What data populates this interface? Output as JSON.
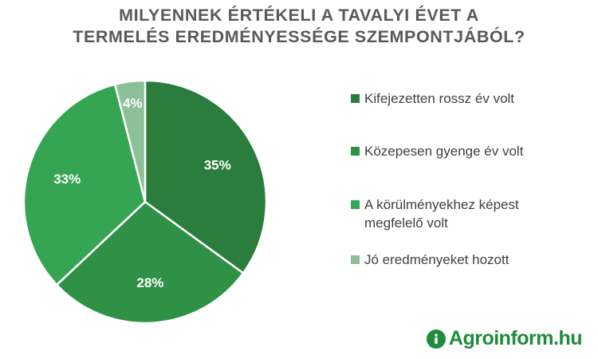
{
  "title_lines": [
    "MILYENNEK ÉRTÉKELI A TAVALYI ÉVET A",
    "TERMELÉS EREDMÉNYESSÉGE SZEMPONTJÁBÓL?"
  ],
  "chart_data": {
    "type": "pie",
    "title": "MILYENNEK ÉRTÉKELI A TAVALYI ÉVET A TERMELÉS EREDMÉNYESSÉGE SZEMPONTJÁBÓL?",
    "unit": "%",
    "slices": [
      {
        "label": "Kifejezetten rossz év volt",
        "value": 35,
        "display": "35%",
        "color": "#2a7d3c"
      },
      {
        "label": "Közepesen gyenge év volt",
        "value": 28,
        "display": "28%",
        "color": "#2e9146"
      },
      {
        "label": "A körülményekhez képest megfelelő volt",
        "value": 33,
        "display": "33%",
        "color": "#35a553"
      },
      {
        "label": "Jó eredményeket hozott",
        "value": 4,
        "display": "4%",
        "color": "#8dbf98"
      }
    ],
    "legend_position": "right"
  },
  "legend": [
    {
      "lines": [
        "Kifejezetten rossz év volt"
      ]
    },
    {
      "lines": [
        "Közepesen gyenge év volt"
      ]
    },
    {
      "lines": [
        "A körülményekhez képest",
        "megfelelő volt"
      ]
    },
    {
      "lines": [
        "Jó eredményeket hozott"
      ]
    }
  ],
  "logo": {
    "text": "Agroinform.hu",
    "icon": "agroinform-logo-icon",
    "color": "#1e8c3a"
  }
}
